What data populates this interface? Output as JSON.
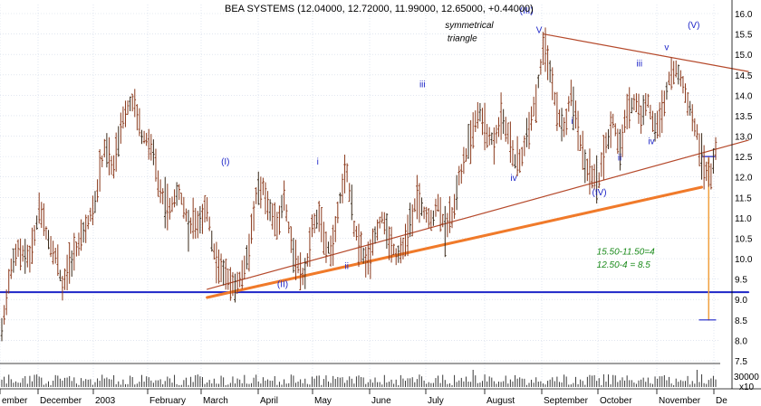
{
  "chart_data": {
    "type": "bar",
    "title": "BEA SYSTEMS (12.04000, 12.72000, 11.99000, 12.65000, +0.44000)",
    "ohlc_summary": {
      "open": 12.04,
      "high": 12.72,
      "low": 11.99,
      "close": 12.65,
      "change": 0.44
    },
    "ylim": [
      7.5,
      16.0
    ],
    "y_ticks": [
      7.5,
      8.0,
      8.5,
      9.0,
      9.5,
      10.0,
      10.5,
      11.0,
      11.5,
      12.0,
      12.5,
      13.0,
      13.5,
      14.0,
      14.5,
      15.0,
      15.5,
      16.0
    ],
    "y_tick_labels": [
      "7.5",
      "8.0",
      "8.5",
      "9.0",
      "9.5",
      "10.0",
      "10.5",
      "11.0",
      "11.5",
      "12.0",
      "12.5",
      "13.0",
      "13.5",
      "14.0",
      "14.5",
      "15.0",
      "15.5",
      "16.0"
    ],
    "volume_tick_label": "30000",
    "volume_unit_label": "x10",
    "x_labels": [
      "ember",
      "December",
      "2003",
      "February",
      "March",
      "April",
      "May",
      "June",
      "July",
      "August",
      "September",
      "October",
      "November",
      "De"
    ],
    "grid": true,
    "price_series": [
      {
        "t": 0,
        "v": 8.2
      },
      {
        "t": 4,
        "v": 9.8
      },
      {
        "t": 7,
        "v": 10.2
      },
      {
        "t": 12,
        "v": 10.0
      },
      {
        "t": 16,
        "v": 11.2
      },
      {
        "t": 20,
        "v": 10.5
      },
      {
        "t": 24,
        "v": 9.9
      },
      {
        "t": 26,
        "v": 9.3
      },
      {
        "t": 30,
        "v": 10.0
      },
      {
        "t": 35,
        "v": 10.6
      },
      {
        "t": 40,
        "v": 11.4
      },
      {
        "t": 44,
        "v": 12.7
      },
      {
        "t": 48,
        "v": 12.2
      },
      {
        "t": 52,
        "v": 13.5
      },
      {
        "t": 56,
        "v": 13.9
      },
      {
        "t": 60,
        "v": 13.0
      },
      {
        "t": 64,
        "v": 12.8
      },
      {
        "t": 68,
        "v": 11.6
      },
      {
        "t": 72,
        "v": 11.2
      },
      {
        "t": 76,
        "v": 11.7
      },
      {
        "t": 80,
        "v": 10.8
      },
      {
        "t": 84,
        "v": 10.9
      },
      {
        "t": 88,
        "v": 11.2
      },
      {
        "t": 92,
        "v": 9.8
      },
      {
        "t": 96,
        "v": 9.6
      },
      {
        "t": 100,
        "v": 9.3
      },
      {
        "t": 103,
        "v": 9.6
      },
      {
        "t": 106,
        "v": 10.3
      },
      {
        "t": 109,
        "v": 11.5
      },
      {
        "t": 112,
        "v": 11.8
      },
      {
        "t": 115,
        "v": 11.2
      },
      {
        "t": 118,
        "v": 10.8
      },
      {
        "t": 121,
        "v": 11.5
      },
      {
        "t": 124,
        "v": 10.4
      },
      {
        "t": 127,
        "v": 9.8
      },
      {
        "t": 130,
        "v": 9.5
      },
      {
        "t": 133,
        "v": 10.8
      },
      {
        "t": 136,
        "v": 11.0
      },
      {
        "t": 139,
        "v": 10.2
      },
      {
        "t": 142,
        "v": 10.4
      },
      {
        "t": 145,
        "v": 11.5
      },
      {
        "t": 148,
        "v": 12.1
      },
      {
        "t": 151,
        "v": 10.8
      },
      {
        "t": 154,
        "v": 10.2
      },
      {
        "t": 157,
        "v": 9.9
      },
      {
        "t": 160,
        "v": 10.6
      },
      {
        "t": 163,
        "v": 11.0
      },
      {
        "t": 166,
        "v": 10.5
      },
      {
        "t": 169,
        "v": 10.1
      },
      {
        "t": 172,
        "v": 10.3
      },
      {
        "t": 175,
        "v": 10.8
      },
      {
        "t": 178,
        "v": 11.5
      },
      {
        "t": 181,
        "v": 11.1
      },
      {
        "t": 184,
        "v": 10.9
      },
      {
        "t": 187,
        "v": 11.4
      },
      {
        "t": 190,
        "v": 10.7
      },
      {
        "t": 193,
        "v": 11.0
      },
      {
        "t": 196,
        "v": 12.0
      },
      {
        "t": 199,
        "v": 12.5
      },
      {
        "t": 202,
        "v": 13.2
      },
      {
        "t": 205,
        "v": 13.6
      },
      {
        "t": 208,
        "v": 13.0
      },
      {
        "t": 211,
        "v": 12.9
      },
      {
        "t": 214,
        "v": 13.4
      },
      {
        "t": 217,
        "v": 13.1
      },
      {
        "t": 220,
        "v": 12.4
      },
      {
        "t": 223,
        "v": 12.5
      },
      {
        "t": 226,
        "v": 13.3
      },
      {
        "t": 229,
        "v": 13.9
      },
      {
        "t": 232,
        "v": 15.2
      },
      {
        "t": 235,
        "v": 14.6
      },
      {
        "t": 238,
        "v": 13.6
      },
      {
        "t": 241,
        "v": 13.2
      },
      {
        "t": 244,
        "v": 14.0
      },
      {
        "t": 247,
        "v": 13.2
      },
      {
        "t": 250,
        "v": 12.3
      },
      {
        "t": 253,
        "v": 12.0
      },
      {
        "t": 256,
        "v": 11.9
      },
      {
        "t": 259,
        "v": 12.8
      },
      {
        "t": 262,
        "v": 13.4
      },
      {
        "t": 265,
        "v": 12.7
      },
      {
        "t": 268,
        "v": 13.6
      },
      {
        "t": 271,
        "v": 13.9
      },
      {
        "t": 274,
        "v": 13.5
      },
      {
        "t": 277,
        "v": 13.9
      },
      {
        "t": 280,
        "v": 13.1
      },
      {
        "t": 283,
        "v": 13.6
      },
      {
        "t": 286,
        "v": 14.4
      },
      {
        "t": 289,
        "v": 14.7
      },
      {
        "t": 292,
        "v": 14.2
      },
      {
        "t": 295,
        "v": 13.7
      },
      {
        "t": 298,
        "v": 13.1
      },
      {
        "t": 301,
        "v": 12.2
      },
      {
        "t": 304,
        "v": 12.1
      },
      {
        "t": 306,
        "v": 12.6
      }
    ],
    "overlay_lines": [
      {
        "name": "support-horizontal",
        "color": "#1d25c8",
        "width": 2,
        "points": [
          [
            -2,
            9.18
          ],
          [
            320,
            9.18
          ]
        ]
      },
      {
        "name": "triangle-upper",
        "color": "#b5492b",
        "width": 1.2,
        "points": [
          [
            232,
            15.5
          ],
          [
            320,
            14.58
          ]
        ]
      },
      {
        "name": "triangle-lower",
        "color": "#b5492b",
        "width": 1.2,
        "points": [
          [
            88,
            9.25
          ],
          [
            320,
            12.9
          ]
        ]
      },
      {
        "name": "trend-support-orange",
        "color": "#f07a2a",
        "width": 3,
        "points": [
          [
            88,
            9.05
          ],
          [
            300,
            11.75
          ]
        ]
      },
      {
        "name": "target-vertical",
        "color": "#f0a040",
        "width": 1.5,
        "points": [
          [
            303,
            12.5
          ],
          [
            303,
            8.5
          ]
        ]
      },
      {
        "name": "target-top-cap",
        "color": "#1d25c8",
        "width": 1.2,
        "points": [
          [
            300,
            12.5
          ],
          [
            306,
            12.5
          ]
        ]
      },
      {
        "name": "target-bottom-cap",
        "color": "#1d25c8",
        "width": 1.2,
        "points": [
          [
            299,
            8.5
          ],
          [
            306,
            8.5
          ]
        ]
      }
    ],
    "annotations": [
      {
        "text": "(III)",
        "t": 222,
        "v": 16.0,
        "color": "#1d25c8"
      },
      {
        "text": "symmetrical",
        "t": 190,
        "v": 15.65,
        "color": "#000000",
        "italic": true
      },
      {
        "text": "triangle",
        "t": 191,
        "v": 15.33,
        "color": "#000000",
        "italic": true
      },
      {
        "text": "V",
        "t": 229,
        "v": 15.52,
        "color": "#1d25c8"
      },
      {
        "text": "v",
        "t": 284,
        "v": 15.1,
        "color": "#1d25c8"
      },
      {
        "text": "(V)",
        "t": 294,
        "v": 15.65,
        "color": "#1d25c8"
      },
      {
        "text": "iii",
        "t": 179,
        "v": 14.2,
        "color": "#1d25c8"
      },
      {
        "text": "iii",
        "t": 272,
        "v": 14.7,
        "color": "#1d25c8"
      },
      {
        "text": "i",
        "t": 244,
        "v": 13.3,
        "color": "#1d25c8"
      },
      {
        "text": "i",
        "t": 135,
        "v": 12.3,
        "color": "#1d25c8"
      },
      {
        "text": "(I)",
        "t": 94,
        "v": 12.3,
        "color": "#1d25c8"
      },
      {
        "text": "iv",
        "t": 218,
        "v": 11.9,
        "color": "#1d25c8"
      },
      {
        "text": "iv",
        "t": 277,
        "v": 12.8,
        "color": "#1d25c8"
      },
      {
        "text": "ii",
        "t": 264,
        "v": 12.4,
        "color": "#1d25c8"
      },
      {
        "text": "(IV)",
        "t": 253,
        "v": 11.55,
        "color": "#1d25c8"
      },
      {
        "text": "(II)",
        "t": 118,
        "v": 9.3,
        "color": "#1d25c8"
      },
      {
        "text": "ii",
        "t": 147,
        "v": 9.75,
        "color": "#1d25c8"
      },
      {
        "text": "15.50-11.50=4",
        "t": 255,
        "v": 10.1,
        "color": "#1a8a1a",
        "italic": true
      },
      {
        "text": "12.50-4 = 8.5",
        "t": 255,
        "v": 9.78,
        "color": "#1a8a1a",
        "italic": true
      }
    ],
    "colors": {
      "bar": "#8b3a1c",
      "bar_alt": "#3a2a1a",
      "volume": "#3a3a3a",
      "grid": "#cfd8e6",
      "axis_text": "#000000"
    }
  }
}
